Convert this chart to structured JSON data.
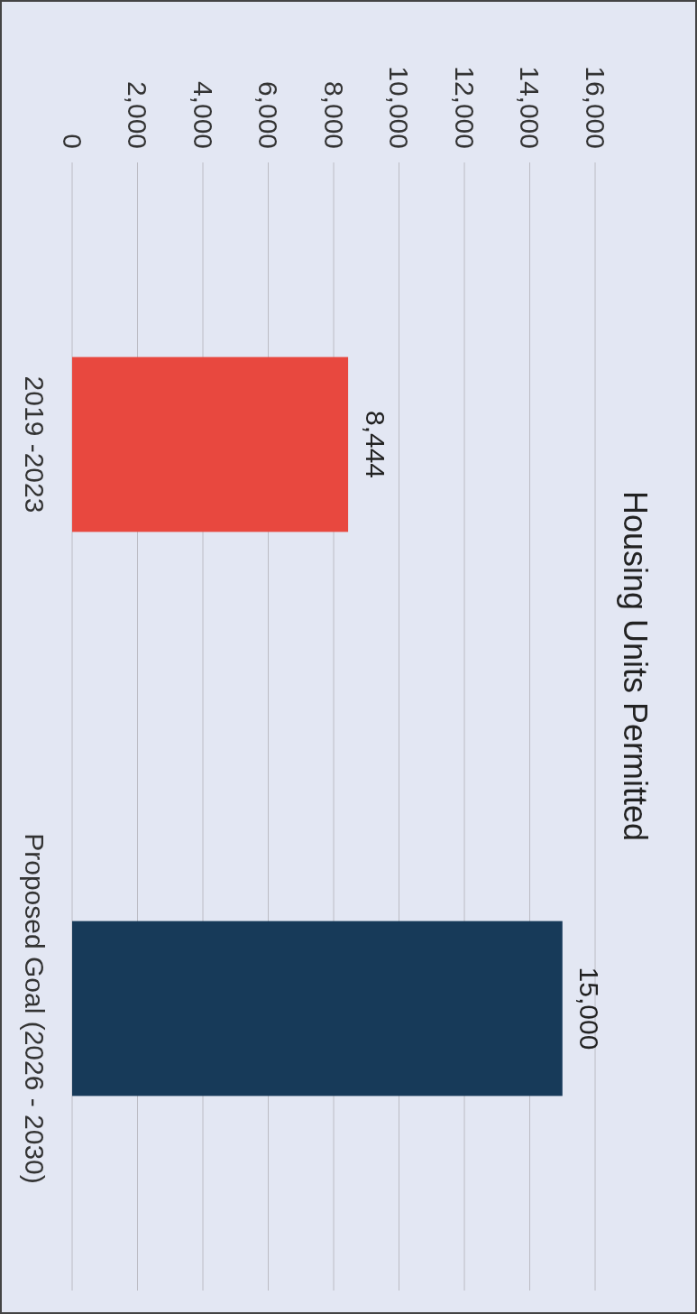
{
  "chart_data": {
    "type": "bar",
    "orientation": "horizontal",
    "title": "Housing Units Permitted",
    "categories": [
      "2019 -2023",
      "Proposed Goal (2026 - 2030)"
    ],
    "values": [
      8444,
      15000
    ],
    "colors": [
      "#e8483f",
      "#173a59"
    ],
    "xlim": [
      0,
      16000
    ],
    "xticks": [
      {
        "value": 0,
        "label": "0"
      },
      {
        "value": 2000,
        "label": "2,000"
      },
      {
        "value": 4000,
        "label": "4,000"
      },
      {
        "value": 6000,
        "label": "6,000"
      },
      {
        "value": 8000,
        "label": "8,000"
      },
      {
        "value": 10000,
        "label": "10,000"
      },
      {
        "value": 12000,
        "label": "12,000"
      },
      {
        "value": 14000,
        "label": "14,000"
      },
      {
        "value": 16000,
        "label": "16,000"
      }
    ],
    "value_labels": [
      "8,444",
      "15,000"
    ],
    "grid": "x"
  }
}
